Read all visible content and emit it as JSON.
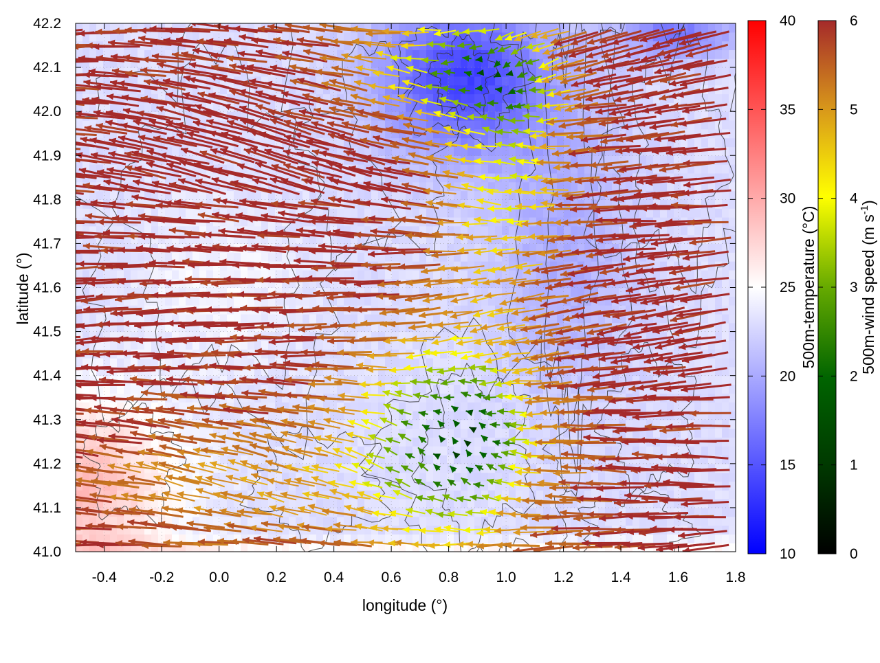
{
  "chart_data": {
    "type": "heatmap",
    "xlabel": "longitude (°)",
    "ylabel": "latitude (°)",
    "xlim": [
      -0.5,
      1.8
    ],
    "ylim": [
      41.0,
      42.2
    ],
    "x_ticks": [
      "-0.4",
      "-0.2",
      "0.0",
      "0.2",
      "0.4",
      "0.6",
      "0.8",
      "1.0",
      "1.2",
      "1.4",
      "1.6",
      "1.8"
    ],
    "y_ticks": [
      "41.0",
      "41.1",
      "41.2",
      "41.3",
      "41.4",
      "41.5",
      "41.6",
      "41.7",
      "41.8",
      "41.9",
      "42.0",
      "42.1",
      "42.2"
    ],
    "grid": true,
    "temperature_colorbar": {
      "label": "500m-temperature (°C)",
      "range": [
        10,
        40
      ],
      "ticks": [
        "10",
        "15",
        "20",
        "25",
        "30",
        "35",
        "40"
      ],
      "colors": [
        "#0000ff",
        "#ffffff",
        "#ff0000"
      ]
    },
    "wind_colorbar": {
      "label_prefix": "500m-wind speed (m s",
      "label_exponent": "-1",
      "label_suffix": ")",
      "range": [
        0,
        6
      ],
      "ticks": [
        "0",
        "1",
        "2",
        "3",
        "4",
        "5",
        "6"
      ],
      "colors": [
        "#000000",
        "#006400",
        "#66aa00",
        "#ffff00",
        "#e0a020",
        "#c06a20",
        "#a52a2a"
      ]
    },
    "temperature_field_summary": {
      "cold_core_center": [
        0.85,
        42.08
      ],
      "cold_core_temp_c": 14,
      "background_temp_c": 23,
      "warm_southwest_temp_c": 29
    },
    "wind_field_summary": {
      "dominant_direction": "westward",
      "strong_speed_m_s": 6,
      "calm_region_center": [
        0.85,
        41.25
      ],
      "calm_region_speed_m_s": 0.5
    }
  }
}
